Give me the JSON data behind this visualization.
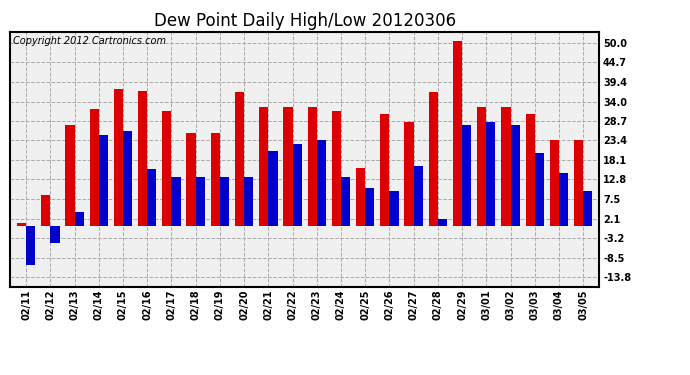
{
  "title": "Dew Point Daily High/Low 20120306",
  "copyright": "Copyright 2012 Cartronics.com",
  "dates": [
    "02/11",
    "02/12",
    "02/13",
    "02/14",
    "02/15",
    "02/16",
    "02/17",
    "02/18",
    "02/19",
    "02/20",
    "02/21",
    "02/22",
    "02/23",
    "02/24",
    "02/25",
    "02/26",
    "02/27",
    "02/28",
    "02/29",
    "03/01",
    "03/02",
    "03/03",
    "03/04",
    "03/05"
  ],
  "highs": [
    1.0,
    8.5,
    27.5,
    32.0,
    37.5,
    37.0,
    31.5,
    25.5,
    25.5,
    36.5,
    32.5,
    32.5,
    32.5,
    31.5,
    16.0,
    30.5,
    28.5,
    36.5,
    50.5,
    32.5,
    32.5,
    30.5,
    23.5,
    23.5
  ],
  "lows": [
    -10.5,
    -4.5,
    4.0,
    25.0,
    26.0,
    15.5,
    13.5,
    13.5,
    13.5,
    13.5,
    20.5,
    22.5,
    23.5,
    13.5,
    10.5,
    9.5,
    16.5,
    2.0,
    27.5,
    28.5,
    27.5,
    20.0,
    14.5,
    9.5
  ],
  "high_color": "#dd0000",
  "low_color": "#0000cc",
  "bg_color": "#ffffff",
  "plot_bg": "#f0f0f0",
  "grid_color": "#aaaaaa",
  "ytick_values": [
    -13.8,
    -8.5,
    -3.2,
    2.1,
    7.5,
    12.8,
    18.1,
    23.4,
    28.7,
    34.0,
    39.4,
    44.7,
    50.0
  ],
  "ytick_labels": [
    "-13.8",
    "-8.5",
    "-3.2",
    "2.1",
    "7.5",
    "12.8",
    "18.1",
    "23.4",
    "28.7",
    "34.0",
    "39.4",
    "44.7",
    "50.0"
  ],
  "ylim": [
    -16.5,
    53.0
  ],
  "bar_width": 0.38,
  "title_fontsize": 12,
  "tick_fontsize": 7,
  "copyright_fontsize": 7
}
